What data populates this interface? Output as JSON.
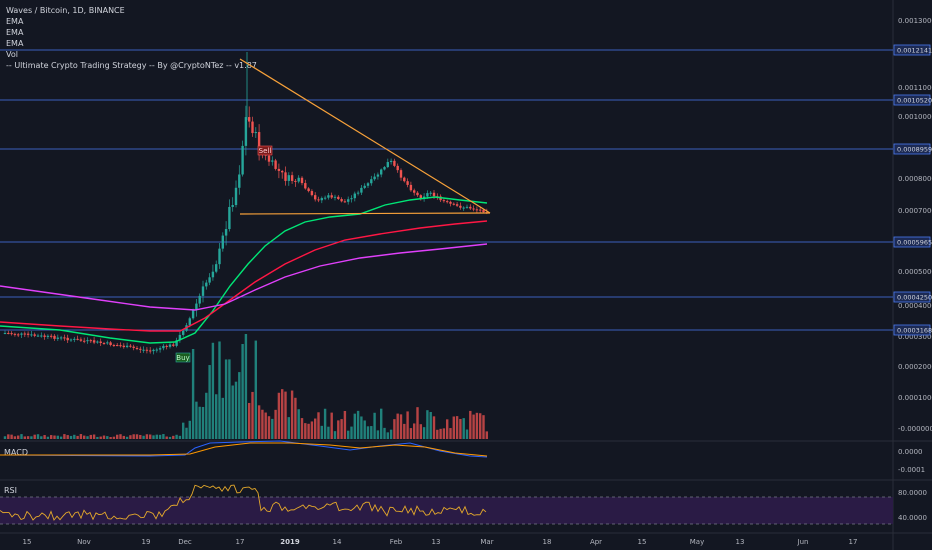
{
  "legend": {
    "title": "Waves / Bitcoin, 1D, BINANCE",
    "ema1": "EMA",
    "ema2": "EMA",
    "ema3": "EMA",
    "vol": "Vol",
    "strategy": "-- Ultimate Crypto Trading Strategy -- By @CryptoNTez -- v1.87"
  },
  "panes": {
    "macd_label": "MACD",
    "rsi_label": "RSI"
  },
  "signals": {
    "buy": "Buy",
    "sell": "Sell"
  },
  "colors": {
    "background": "#131722",
    "up": "#26a69a",
    "down": "#ef5350",
    "ema_fast": "#00e676",
    "ema_mid": "#ff1744",
    "ema_slow": "#e040fb",
    "trendline": "#f7a13a",
    "level": "#4a79f0",
    "rsi": "#e5a92b",
    "macd": "#2962ff",
    "signal": "#ff9800"
  },
  "chart_data": {
    "type": "candlestick",
    "price_axis": {
      "ticks": [
        "0.0013000",
        "0.0011000",
        "0.0010000",
        "0.0008000",
        "0.0007000",
        "0.0005000",
        "0.0004000",
        "0.0003000",
        "0.0002000",
        "0.0001000",
        "-0.0000000"
      ]
    },
    "horizontal_levels": [
      "0.0012141",
      "0.0010520",
      "0.0008959",
      "0.0005965",
      "0.0004250",
      "0.0003168"
    ],
    "macd_axis": {
      "ticks": [
        "0.0000",
        "-0.0001"
      ]
    },
    "rsi_axis": {
      "ticks": [
        "80.0000",
        "40.0000"
      ]
    },
    "x_axis": {
      "ticks": [
        "15",
        "Nov",
        "19",
        "Dec",
        "17",
        "2019",
        "14",
        "Feb",
        "13",
        "Mar",
        "18",
        "Apr",
        "15",
        "May",
        "13",
        "Jun",
        "17"
      ],
      "bold": [
        "2019"
      ]
    },
    "price_ylim": [
      0.0002,
      0.0013
    ],
    "ema_series": [
      "EMA",
      "EMA",
      "EMA"
    ],
    "trendlines": "descending triangle from Dec peak to Mar apex"
  }
}
